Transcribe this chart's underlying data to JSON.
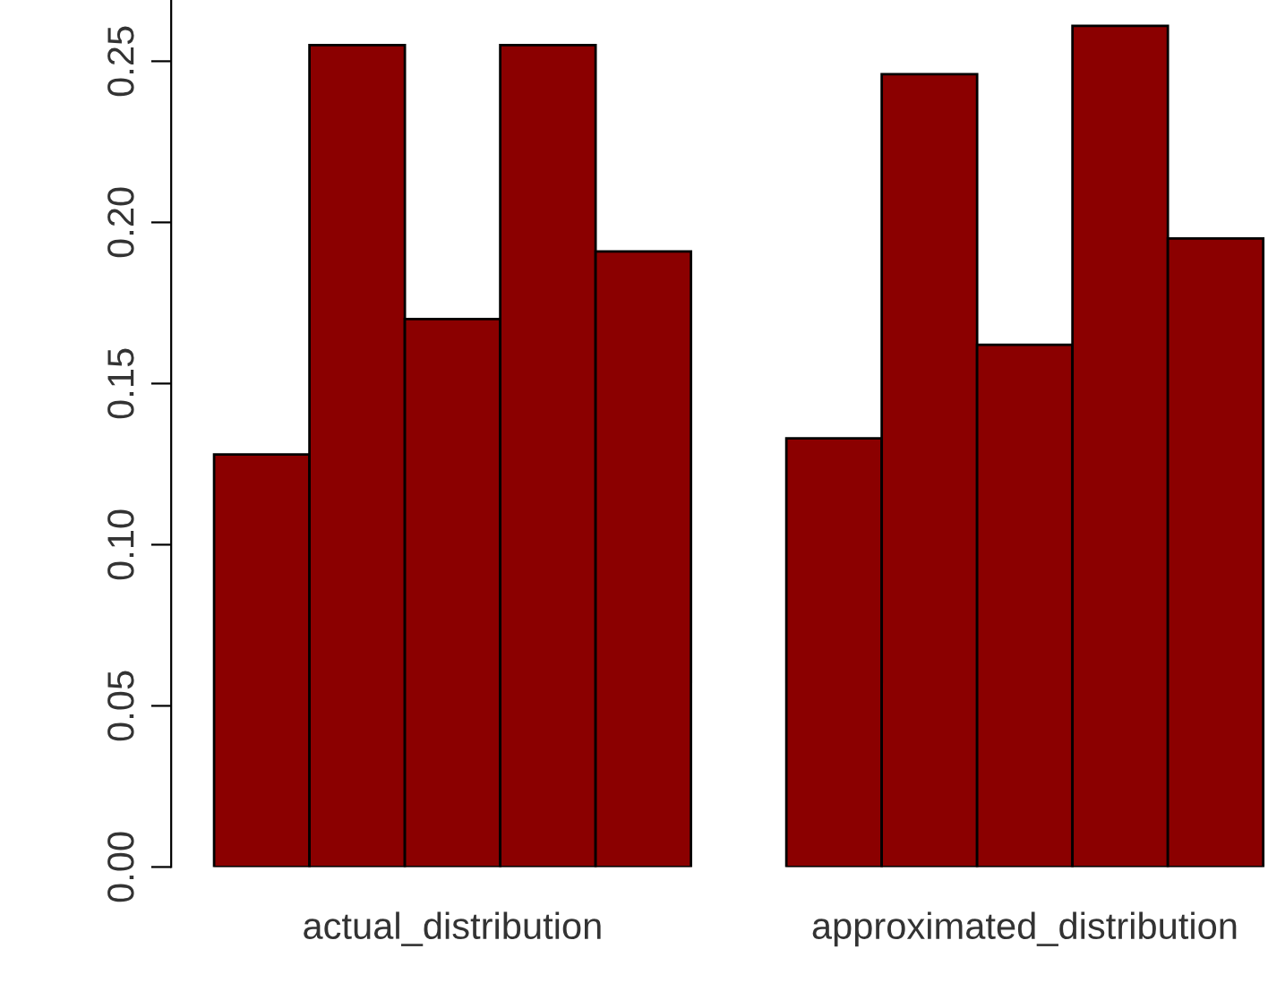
{
  "chart_data": {
    "type": "bar",
    "categories": [
      "actual_distribution",
      "approximated_distribution"
    ],
    "series": [
      {
        "color": "#8b0000",
        "values": [
          0.128,
          0.133
        ]
      },
      {
        "color": "#8b0000",
        "values": [
          0.255,
          0.246
        ]
      },
      {
        "color": "#8b0000",
        "values": [
          0.17,
          0.162
        ]
      },
      {
        "color": "#8b0000",
        "values": [
          0.255,
          0.261
        ]
      },
      {
        "color": "#8b0000",
        "values": [
          0.191,
          0.195
        ]
      }
    ],
    "ylim": [
      0,
      0.269
    ],
    "yticks": [
      {
        "value": 0,
        "label": "0.00"
      },
      0.05,
      {
        "value": 0.1,
        "label": "0.10"
      },
      0.15,
      {
        "value": 0.2,
        "label": "0.20"
      },
      0.25
    ],
    "grid": false,
    "legend": false
  }
}
